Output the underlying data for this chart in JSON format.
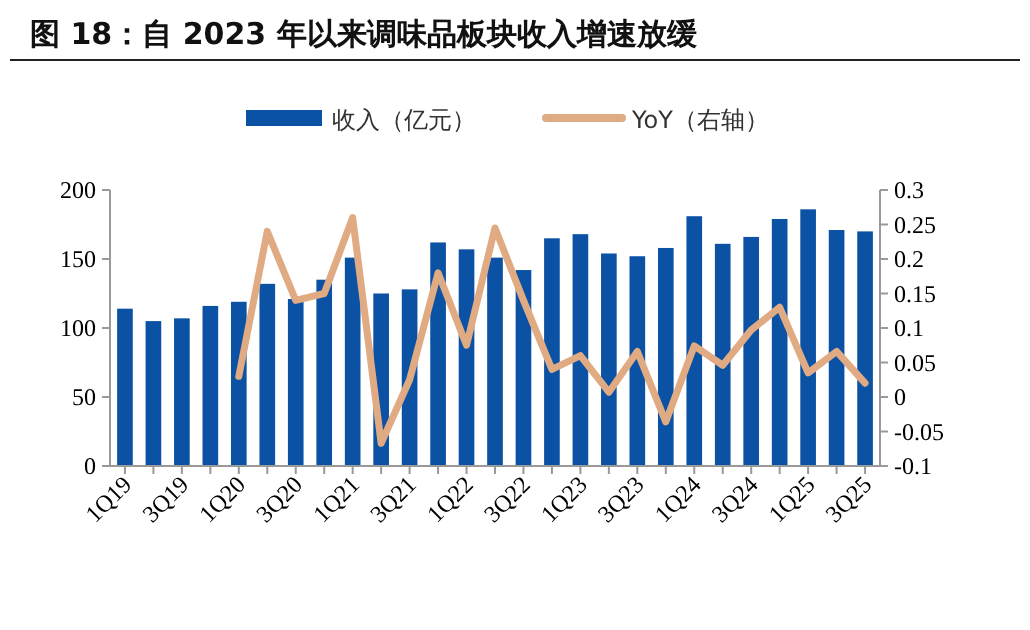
{
  "chart_data": {
    "type": "bar",
    "title": "图 18：自 2023 年以来调味品板块收入增速放缓",
    "categories": [
      "1Q19",
      null,
      "3Q19",
      null,
      "1Q20",
      null,
      "3Q20",
      null,
      "1Q21",
      null,
      "3Q21",
      null,
      "1Q22",
      null,
      "3Q22",
      null,
      "1Q23",
      null,
      "3Q23",
      null,
      "1Q24",
      null,
      "3Q24",
      null,
      "1Q25",
      null,
      "3Q25"
    ],
    "series": [
      {
        "name": "收入（亿元）",
        "color": "#0b52a5",
        "values": [
          114,
          105,
          107,
          116,
          119,
          132,
          121,
          135,
          151,
          125,
          128,
          162,
          157,
          151,
          142,
          165,
          168,
          154,
          152,
          158,
          181,
          161,
          166,
          179,
          186,
          171,
          170
        ]
      },
      {
        "name": "YoY（右轴）",
        "type": "line",
        "axis": "y2",
        "color": "#e0ab83",
        "values": [
          null,
          null,
          null,
          null,
          0.03,
          0.24,
          0.14,
          0.15,
          0.26,
          -0.067,
          0.025,
          0.18,
          0.075,
          0.245,
          0.14,
          0.04,
          0.06,
          0.007,
          0.066,
          -0.036,
          0.074,
          0.046,
          0.097,
          0.13,
          0.035,
          0.066,
          0.02
        ]
      }
    ],
    "ylim": [
      0,
      200
    ],
    "yticks": [
      0,
      50,
      100,
      150,
      200
    ],
    "y2lim": [
      -0.1,
      0.3
    ],
    "y2ticks": [
      -0.1,
      -0.05,
      0,
      0.05,
      0.1,
      0.15,
      0.2,
      0.25,
      0.3
    ],
    "legend": "top",
    "grid": false
  }
}
